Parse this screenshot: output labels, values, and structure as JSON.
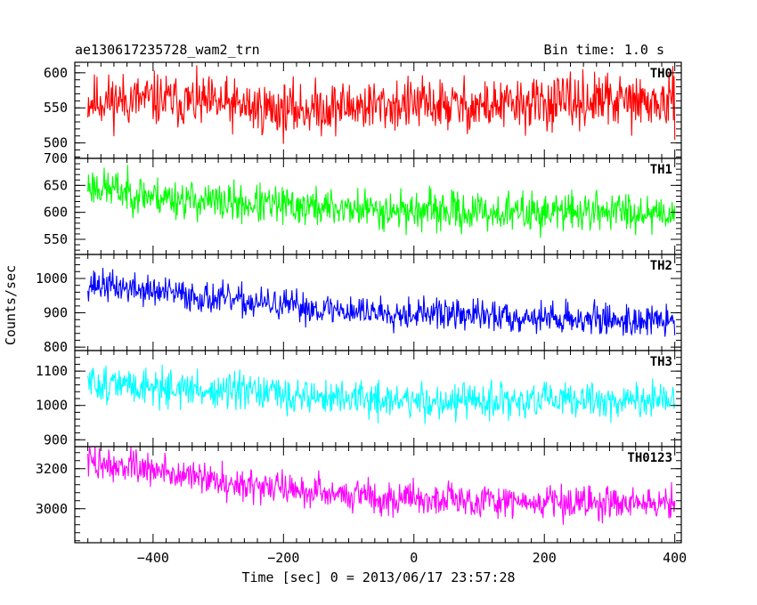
{
  "chart_data": {
    "type": "line",
    "title": "ae130617235728_wam2_trn",
    "bin_time": "Bin time: 1.0 s",
    "xlabel": "Time [sec] 0 = 2013/06/17 23:57:28",
    "ylabel": "Counts/sec",
    "xlim": [
      -520,
      410
    ],
    "x_ticks": [
      -400,
      -200,
      0,
      200,
      400
    ],
    "x_tick_labels": [
      "−400",
      "−200",
      "0",
      "200",
      "400"
    ],
    "x_range": [
      -500,
      400
    ],
    "bin_size": 1.0,
    "panels": [
      {
        "name": "TH0",
        "color": "#ff0000",
        "ylim": [
          478,
          615
        ],
        "y_ticks": [
          500,
          550,
          600
        ],
        "y_tick_labels": [
          "500",
          "550",
          "600"
        ],
        "trend": [
          [
            -500,
            560
          ],
          [
            -400,
            562
          ],
          [
            -300,
            555
          ],
          [
            -200,
            547
          ],
          [
            -100,
            552
          ],
          [
            0,
            555
          ],
          [
            100,
            552
          ],
          [
            200,
            556
          ],
          [
            300,
            560
          ],
          [
            400,
            555
          ]
        ],
        "noise_amp": 28,
        "seed": 11
      },
      {
        "name": "TH1",
        "color": "#00ff00",
        "ylim": [
          522,
          700
        ],
        "y_ticks": [
          550,
          600,
          650,
          700
        ],
        "y_tick_labels": [
          "550",
          "600",
          "650",
          "700"
        ],
        "trend": [
          [
            -500,
            650
          ],
          [
            -400,
            630
          ],
          [
            -300,
            618
          ],
          [
            -200,
            612
          ],
          [
            -100,
            607
          ],
          [
            0,
            603
          ],
          [
            100,
            600
          ],
          [
            200,
            600
          ],
          [
            300,
            603
          ],
          [
            400,
            600
          ]
        ],
        "noise_amp": 27,
        "seed": 23
      },
      {
        "name": "TH2",
        "color": "#0000ff",
        "ylim": [
          790,
          1070
        ],
        "y_ticks": [
          800,
          900,
          1000
        ],
        "y_tick_labels": [
          "800",
          "900",
          "1000"
        ],
        "trend": [
          [
            -500,
            985
          ],
          [
            -400,
            962
          ],
          [
            -300,
            940
          ],
          [
            -200,
            920
          ],
          [
            -100,
            906
          ],
          [
            0,
            900
          ],
          [
            100,
            892
          ],
          [
            200,
            886
          ],
          [
            300,
            880
          ],
          [
            400,
            874
          ]
        ],
        "noise_amp": 34,
        "seed": 37
      },
      {
        "name": "TH3",
        "color": "#00ffff",
        "ylim": [
          880,
          1160
        ],
        "y_ticks": [
          900,
          1000,
          1100
        ],
        "y_tick_labels": [
          "900",
          "1000",
          "1100"
        ],
        "trend": [
          [
            -500,
            1065
          ],
          [
            -400,
            1055
          ],
          [
            -300,
            1040
          ],
          [
            -200,
            1030
          ],
          [
            -100,
            1020
          ],
          [
            0,
            1012
          ],
          [
            100,
            1010
          ],
          [
            200,
            1012
          ],
          [
            300,
            1016
          ],
          [
            400,
            1010
          ]
        ],
        "noise_amp": 40,
        "seed": 51
      },
      {
        "name": "TH0123",
        "color": "#ff00ff",
        "ylim": [
          2830,
          3310
        ],
        "y_ticks": [
          3000,
          3200
        ],
        "y_tick_labels": [
          "3000",
          "3200"
        ],
        "trend": [
          [
            -500,
            3235
          ],
          [
            -400,
            3190
          ],
          [
            -300,
            3140
          ],
          [
            -200,
            3100
          ],
          [
            -100,
            3070
          ],
          [
            0,
            3050
          ],
          [
            100,
            3040
          ],
          [
            200,
            3035
          ],
          [
            300,
            3032
          ],
          [
            400,
            3025
          ]
        ],
        "noise_amp": 62,
        "seed": 73
      }
    ]
  }
}
